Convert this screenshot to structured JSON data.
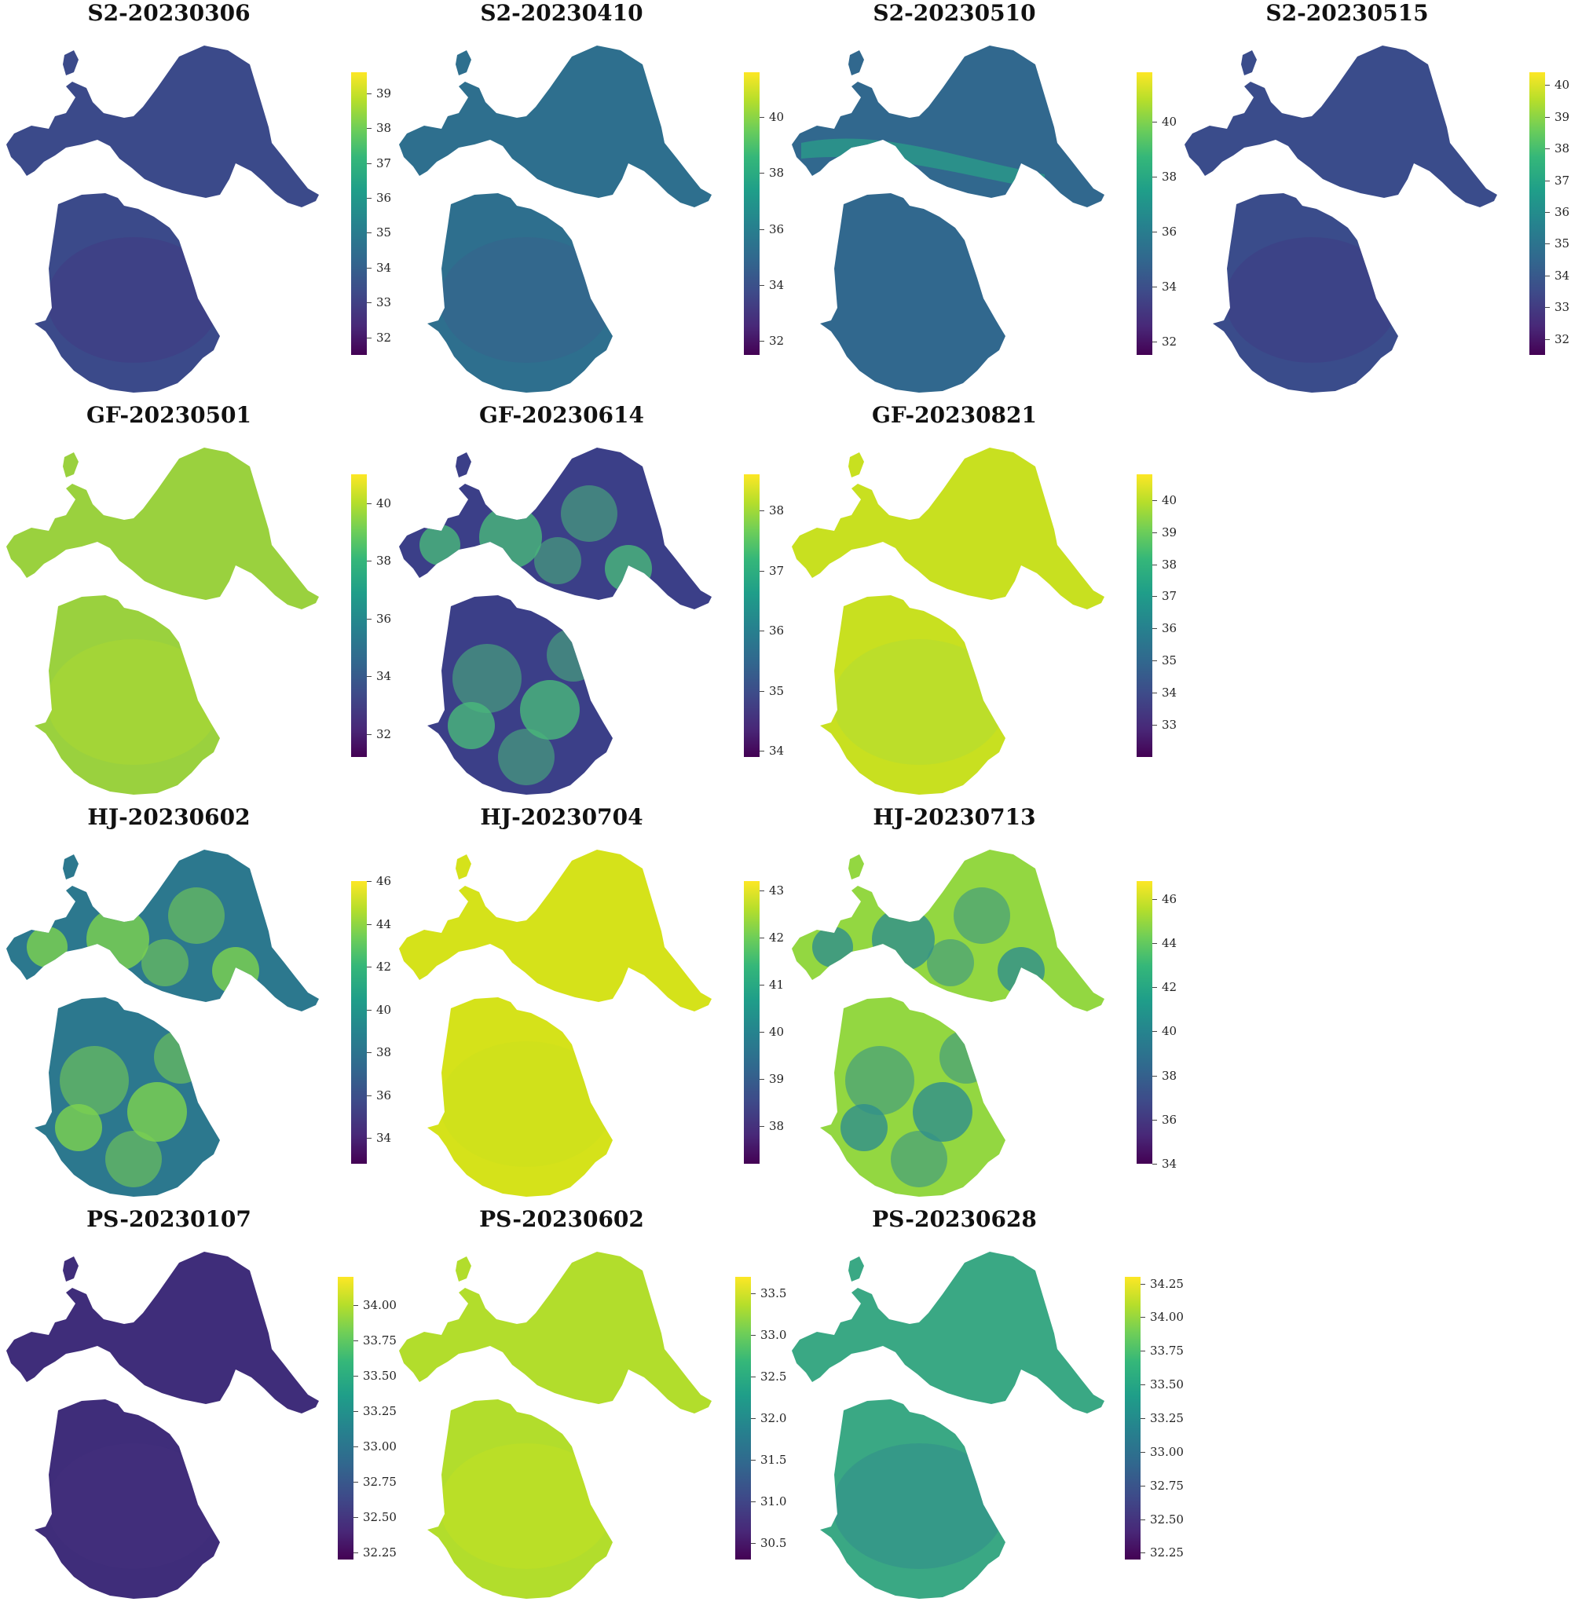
{
  "panels": [
    {
      "title": "S2-20230306",
      "ticks": [
        "32",
        "33",
        "34",
        "35",
        "36",
        "37",
        "38",
        "39"
      ],
      "tick_values": [
        32,
        33,
        34,
        35,
        36,
        37,
        38,
        39
      ],
      "range": [
        31.5,
        39.6
      ],
      "base": "#3b4a8a",
      "accent": "#46327e",
      "variation": "uniform-dark"
    },
    {
      "title": "S2-20230410",
      "ticks": [
        "32",
        "34",
        "36",
        "38",
        "40"
      ],
      "tick_values": [
        32,
        34,
        36,
        38,
        40
      ],
      "range": [
        31.5,
        41.6
      ],
      "base": "#2e6f8e",
      "accent": "#3b5c8c",
      "variation": "uniform"
    },
    {
      "title": "S2-20230510",
      "ticks": [
        "32",
        "34",
        "36",
        "38",
        "40"
      ],
      "tick_values": [
        32,
        34,
        36,
        38,
        40
      ],
      "range": [
        31.5,
        41.8
      ],
      "base": "#31688e",
      "accent": "#2a9a89",
      "variation": "band"
    },
    {
      "title": "S2-20230515",
      "ticks": [
        "32",
        "33",
        "34",
        "35",
        "36",
        "37",
        "38",
        "39",
        "40"
      ],
      "tick_values": [
        32,
        33,
        34,
        35,
        36,
        37,
        38,
        39,
        40
      ],
      "range": [
        31.5,
        40.4
      ],
      "base": "#3a4c8b",
      "accent": "#433580",
      "variation": "uniform-dark"
    },
    {
      "title": "GF-20230501",
      "ticks": [
        "32",
        "34",
        "36",
        "38",
        "40"
      ],
      "tick_values": [
        32,
        34,
        36,
        38,
        40
      ],
      "range": [
        31.2,
        41.0
      ],
      "base": "#9ad13e",
      "accent": "#b5de2b",
      "variation": "uniform"
    },
    {
      "title": "GF-20230614",
      "ticks": [
        "34",
        "35",
        "36",
        "37",
        "38"
      ],
      "tick_values": [
        34,
        35,
        36,
        37,
        38
      ],
      "range": [
        33.9,
        38.6
      ],
      "base": "#3b3f88",
      "accent": "#4ab97a",
      "variation": "patchy-dark"
    },
    {
      "title": "GF-20230821",
      "ticks": [
        "33",
        "34",
        "35",
        "36",
        "37",
        "38",
        "39",
        "40"
      ],
      "tick_values": [
        33,
        34,
        35,
        36,
        37,
        38,
        39,
        40
      ],
      "range": [
        32.0,
        40.8
      ],
      "base": "#c8e020",
      "accent": "#a6d940",
      "variation": "uniform"
    },
    {
      "title": "HJ-20230602",
      "ticks": [
        "34",
        "36",
        "38",
        "40",
        "42",
        "44",
        "46"
      ],
      "tick_values": [
        34,
        36,
        38,
        40,
        42,
        44,
        46
      ],
      "range": [
        32.8,
        46.0
      ],
      "base": "#2c788e",
      "accent": "#7ed34f",
      "variation": "patchy"
    },
    {
      "title": "HJ-20230704",
      "ticks": [
        "38",
        "39",
        "40",
        "41",
        "42",
        "43"
      ],
      "tick_values": [
        38,
        39,
        40,
        41,
        42,
        43
      ],
      "range": [
        37.2,
        43.2
      ],
      "base": "#d5e21a",
      "accent": "#c8e020",
      "variation": "uniform"
    },
    {
      "title": "HJ-20230713",
      "ticks": [
        "34",
        "36",
        "38",
        "40",
        "42",
        "44",
        "46"
      ],
      "tick_values": [
        34,
        36,
        38,
        40,
        42,
        44,
        46
      ],
      "range": [
        34.0,
        46.8
      ],
      "base": "#93d741",
      "accent": "#2f8e8c",
      "variation": "patchy"
    },
    {
      "title": "PS-20230107",
      "ticks": [
        "32.25",
        "32.50",
        "32.75",
        "33.00",
        "33.25",
        "33.50",
        "33.75",
        "34.00"
      ],
      "tick_values": [
        32.25,
        32.5,
        32.75,
        33.0,
        33.25,
        33.5,
        33.75,
        34.0
      ],
      "range": [
        32.2,
        34.2
      ],
      "base": "#3f2d7a",
      "accent": "#46327e",
      "variation": "uniform-dark"
    },
    {
      "title": "PS-20230602",
      "ticks": [
        "30.5",
        "31.0",
        "31.5",
        "32.0",
        "32.5",
        "33.0",
        "33.5"
      ],
      "tick_values": [
        30.5,
        31.0,
        31.5,
        32.0,
        32.5,
        33.0,
        33.5
      ],
      "range": [
        30.3,
        33.7
      ],
      "base": "#b2dd2c",
      "accent": "#c9e120",
      "variation": "uniform"
    },
    {
      "title": "PS-20230628",
      "ticks": [
        "32.25",
        "32.50",
        "32.75",
        "33.00",
        "33.25",
        "33.50",
        "33.75",
        "34.00",
        "34.25"
      ],
      "tick_values": [
        32.25,
        32.5,
        32.75,
        33.0,
        33.25,
        33.5,
        33.75,
        34.0,
        34.25
      ],
      "range": [
        32.2,
        34.3
      ],
      "base": "#3aa884",
      "accent": "#2f7d8e",
      "variation": "uniform"
    }
  ]
}
